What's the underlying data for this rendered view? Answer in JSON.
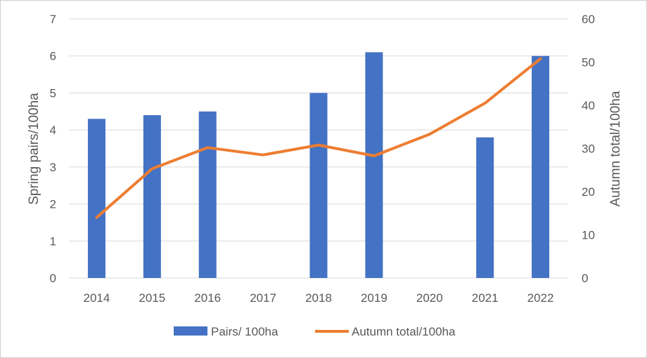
{
  "chart_data": {
    "type": "bar",
    "categories": [
      "2014",
      "2015",
      "2016",
      "2017",
      "2018",
      "2019",
      "2020",
      "2021",
      "2022"
    ],
    "series": [
      {
        "name": "Pairs/ 100ha",
        "type": "bar",
        "axis": "left",
        "color": "#4472c4",
        "values": [
          4.3,
          4.4,
          4.5,
          null,
          5.0,
          6.1,
          null,
          3.8,
          6.0
        ]
      },
      {
        "name": "Autumn total/100ha",
        "type": "line",
        "axis": "right",
        "color": "#ed7d31",
        "values": [
          14,
          25.3,
          30.2,
          28.5,
          30.8,
          28.3,
          33.3,
          40.5,
          50.8
        ]
      }
    ],
    "ylabel": "Spring pairs/100ha",
    "y2label": "Autumn total/100ha",
    "ylim": [
      0,
      7
    ],
    "y2lim": [
      0,
      60
    ],
    "yticks": [
      "0",
      "1",
      "2",
      "3",
      "4",
      "5",
      "6",
      "7"
    ],
    "y2ticks": [
      "0",
      "10",
      "20",
      "30",
      "40",
      "50",
      "60"
    ],
    "grid": true,
    "legend_position": "bottom"
  }
}
